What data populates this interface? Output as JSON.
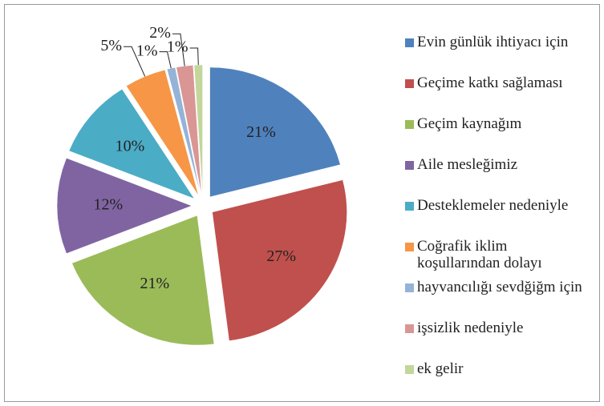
{
  "chart_data": {
    "type": "pie",
    "categories": [
      "Evin günlük ihtiyacı için",
      "Geçime katkı sağlaması",
      "Geçim kaynağım",
      "Aile mesleğimiz",
      "Desteklemeler nedeniyle",
      "Coğrafik iklim koşullarından dolayı",
      "hayvancılığı sevdğiğm için",
      "işsizlik nedeniyle",
      "ek gelir"
    ],
    "values": [
      21,
      27,
      21,
      12,
      10,
      5,
      1,
      2,
      1
    ],
    "value_labels": [
      "21%",
      "27%",
      "21%",
      "12%",
      "10%",
      "5%",
      "1%",
      "2%",
      "1%"
    ],
    "colors": [
      "#4f81bd",
      "#c0504d",
      "#9bbb59",
      "#8064a2",
      "#4bacc6",
      "#f79646",
      "#95b3d7",
      "#d99694",
      "#c3d69b"
    ],
    "legend": "right"
  }
}
